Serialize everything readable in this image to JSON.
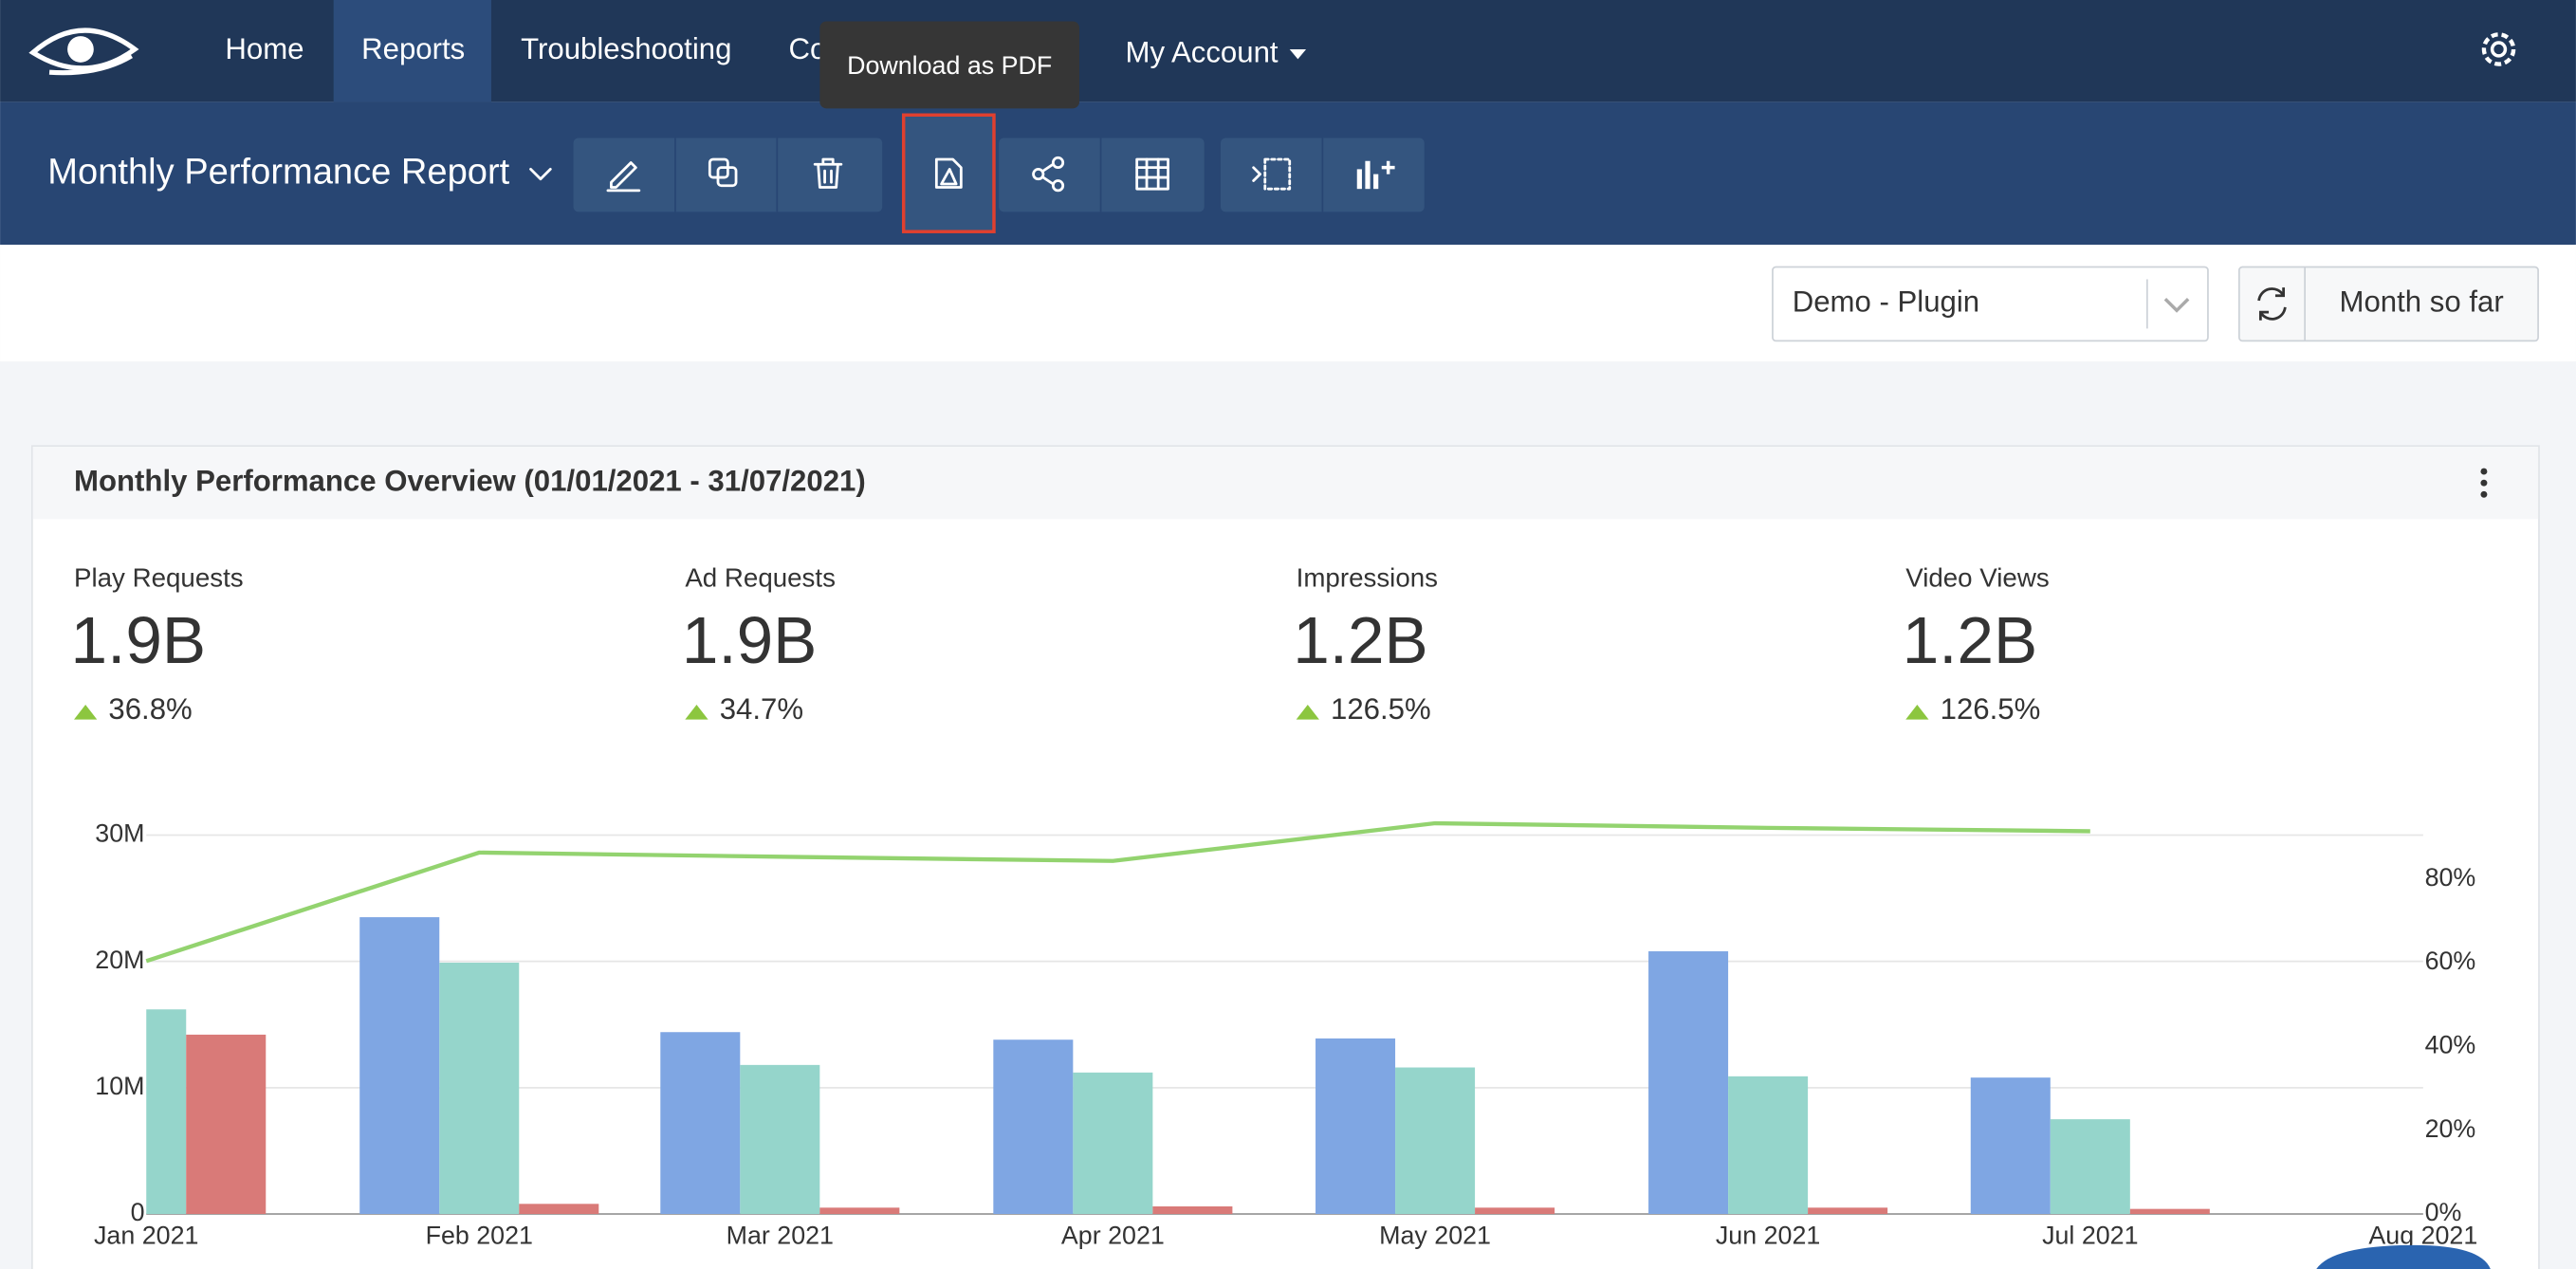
{
  "nav": {
    "items": [
      "Home",
      "Reports",
      "Troubleshooting",
      "Co",
      "My Account"
    ]
  },
  "tooltip": "Download as PDF",
  "toolbar": {
    "title": "Monthly Performance Report"
  },
  "filters": {
    "property": "Demo - Plugin",
    "range": "Month so far"
  },
  "panel": {
    "title": "Monthly Performance Overview (01/01/2021  -  31/07/2021)",
    "kpis": [
      {
        "label": "Play Requests",
        "value": "1.9B",
        "change": "36.8%"
      },
      {
        "label": "Ad Requests",
        "value": "1.9B",
        "change": "34.7%"
      },
      {
        "label": "Impressions",
        "value": "1.2B",
        "change": "126.5%"
      },
      {
        "label": "Video Views",
        "value": "1.2B",
        "change": "126.5%"
      }
    ]
  },
  "chart_data": {
    "type": "bar",
    "categories": [
      "Jan 2021",
      "Feb 2021",
      "Mar 2021",
      "Apr 2021",
      "May 2021",
      "Jun 2021",
      "Jul 2021",
      "Aug 2021"
    ],
    "series": [
      {
        "color": "#7fa6e3",
        "values": [
          null,
          23500000,
          14400000,
          13800000,
          13900000,
          20800000,
          10800000,
          null
        ]
      },
      {
        "color": "#95d5cb",
        "values": [
          16200000,
          19900000,
          11800000,
          11200000,
          11600000,
          10900000,
          7500000,
          null
        ]
      },
      {
        "color": "#d97a78",
        "values": [
          14200000,
          800000,
          500000,
          600000,
          500000,
          500000,
          400000,
          null
        ]
      },
      {
        "type": "line",
        "axis": "y2",
        "color": "#93d36f",
        "values": [
          60.4,
          86.3,
          85.3,
          84.3,
          93.3,
          92.2,
          91.4,
          null
        ]
      }
    ],
    "ylim": [
      0,
      32000000
    ],
    "yticks": [
      0,
      {
        "value": 10000000,
        "label": "10M"
      },
      {
        "value": 20000000,
        "label": "20M"
      },
      {
        "value": 30000000,
        "label": "30M"
      }
    ],
    "y2lim": [
      0,
      96.5
    ],
    "y2ticks": [
      {
        "value": 0,
        "label": "0%"
      },
      {
        "value": 20,
        "label": "20%"
      },
      {
        "value": 40,
        "label": "40%"
      },
      {
        "value": 60,
        "label": "60%"
      },
      {
        "value": 80,
        "label": "80%"
      }
    ],
    "grid": true
  }
}
